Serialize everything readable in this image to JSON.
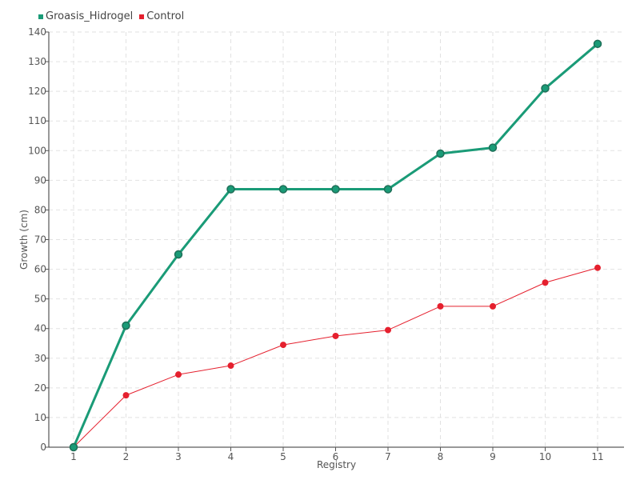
{
  "chart_data": {
    "type": "line",
    "title": "",
    "xlabel": "Registry",
    "ylabel": "Growth (cm)",
    "x": [
      1,
      2,
      3,
      4,
      5,
      6,
      7,
      8,
      9,
      10,
      11
    ],
    "ylim": [
      0,
      140
    ],
    "yticks": [
      0,
      10,
      20,
      30,
      40,
      50,
      60,
      70,
      80,
      90,
      100,
      110,
      120,
      130,
      140
    ],
    "grid": true,
    "legend_position": "top-left",
    "series": [
      {
        "name": "Groasis_Hidrogel",
        "color": "#1a9b77",
        "values": [
          0,
          41,
          65,
          87,
          87,
          87,
          87,
          99,
          101,
          121,
          136
        ]
      },
      {
        "name": "Control",
        "color": "#e5202e",
        "values": [
          0,
          17.5,
          24.5,
          27.5,
          34.5,
          37.5,
          39.5,
          47.5,
          47.5,
          55.5,
          60.5
        ]
      }
    ]
  }
}
